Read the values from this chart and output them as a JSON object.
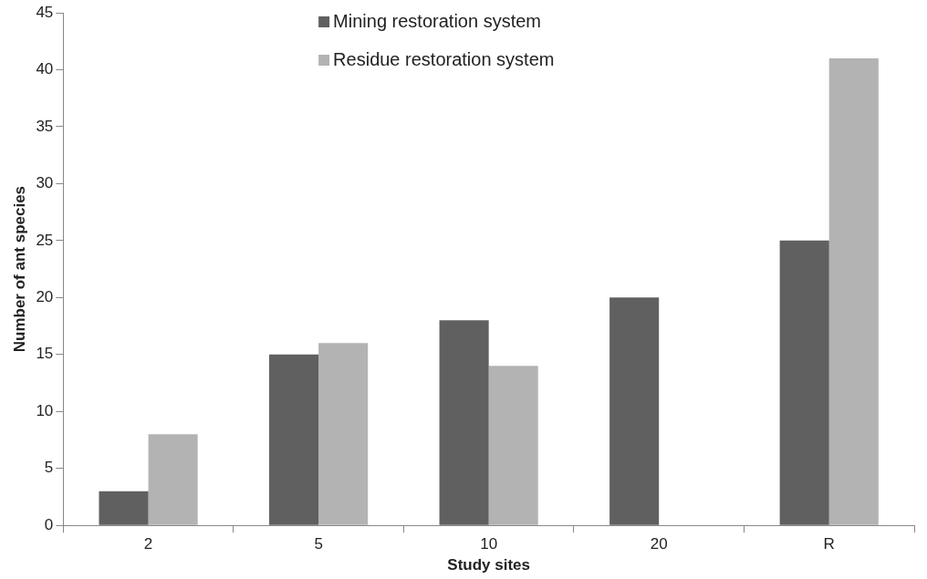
{
  "chart_data": {
    "type": "bar",
    "xlabel": "Study sites",
    "ylabel": "Number of ant species",
    "categories": [
      "2",
      "5",
      "10",
      "20",
      "R"
    ],
    "series": [
      {
        "name": "Mining restoration system",
        "color": "#606060",
        "values": [
          3,
          15,
          18,
          20,
          25
        ]
      },
      {
        "name": "Residue restoration system",
        "color": "#b3b3b3",
        "values": [
          8,
          16,
          14,
          null,
          41
        ]
      }
    ],
    "ylim": [
      0,
      45
    ],
    "yticks": [
      0,
      5,
      10,
      15,
      20,
      25,
      30,
      35,
      40,
      45
    ],
    "grid": false,
    "legend": "top"
  }
}
